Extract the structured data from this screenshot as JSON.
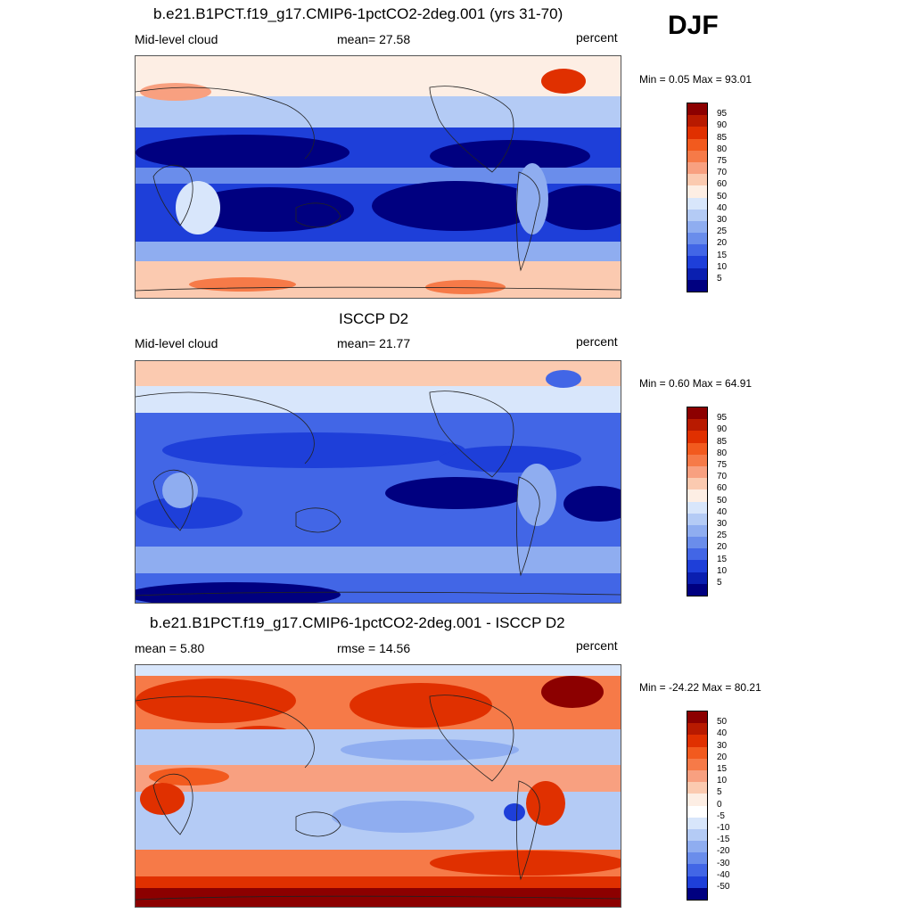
{
  "season": "DJF",
  "panels": [
    {
      "title": "b.e21.B1PCT.f19_g17.CMIP6-1pctCO2-2deg.001 (yrs 31-70)",
      "left_label": "Mid-level cloud",
      "center_label": "mean=  27.58",
      "units": "percent",
      "minmax": "Min =   0.05 Max =  93.01",
      "colorbar": {
        "labels": [
          "95",
          "90",
          "85",
          "80",
          "75",
          "70",
          "60",
          "50",
          "40",
          "30",
          "25",
          "20",
          "15",
          "10",
          "5"
        ],
        "colors": [
          "#8c0000",
          "#b81a00",
          "#e03000",
          "#f25a1e",
          "#f67a48",
          "#f8a080",
          "#fbcab0",
          "#fdeee4",
          "#d8e6fb",
          "#b4cbf5",
          "#8fadf0",
          "#6a8deb",
          "#4266e6",
          "#1e3fd9",
          "#0a1fb0",
          "#000080"
        ]
      }
    },
    {
      "title": "ISCCP D2",
      "left_label": "Mid-level cloud",
      "center_label": "mean=  21.77",
      "units": "percent",
      "minmax": "Min =   0.60 Max =  64.91",
      "colorbar": {
        "labels": [
          "95",
          "90",
          "85",
          "80",
          "75",
          "70",
          "60",
          "50",
          "40",
          "30",
          "25",
          "20",
          "15",
          "10",
          "5"
        ],
        "colors": [
          "#8c0000",
          "#b81a00",
          "#e03000",
          "#f25a1e",
          "#f67a48",
          "#f8a080",
          "#fbcab0",
          "#fdeee4",
          "#d8e6fb",
          "#b4cbf5",
          "#8fadf0",
          "#6a8deb",
          "#4266e6",
          "#1e3fd9",
          "#0a1fb0",
          "#000080"
        ]
      }
    },
    {
      "title": "b.e21.B1PCT.f19_g17.CMIP6-1pctCO2-2deg.001 - ISCCP D2",
      "left_label": "mean =   5.80",
      "center_label": "rmse =  14.56",
      "units": "percent",
      "minmax": "Min = -24.22 Max =  80.21",
      "colorbar": {
        "labels": [
          "50",
          "40",
          "30",
          "20",
          "15",
          "10",
          "5",
          "0",
          "-5",
          "-10",
          "-15",
          "-20",
          "-30",
          "-40",
          "-50"
        ],
        "colors": [
          "#8c0000",
          "#b81a00",
          "#e03000",
          "#f25a1e",
          "#f67a48",
          "#f8a080",
          "#fbcab0",
          "#fdeee4",
          "#ffffff",
          "#d8e6fb",
          "#b4cbf5",
          "#8fadf0",
          "#6a8deb",
          "#4266e6",
          "#1e3fd9",
          "#000080"
        ]
      }
    }
  ]
}
